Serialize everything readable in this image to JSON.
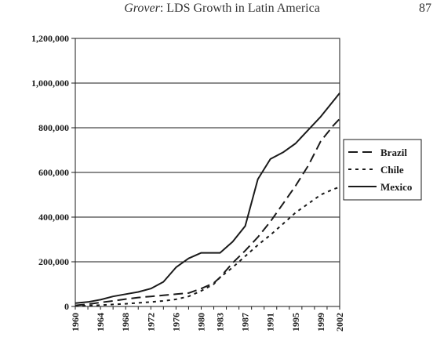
{
  "header": {
    "author": "Grover",
    "title_rest": ": LDS Growth in Latin America",
    "page_number": "87"
  },
  "chart_data": {
    "type": "line",
    "title": "",
    "xlabel": "",
    "ylabel": "",
    "ylim": [
      0,
      1200000
    ],
    "y_ticks": [
      "0",
      "200,000",
      "400,000",
      "600,000",
      "800,000",
      "1,000,000",
      "1,200,000"
    ],
    "y_tick_values": [
      0,
      200000,
      400000,
      600000,
      800000,
      1000000,
      1200000
    ],
    "x_ticks": [
      "1960",
      "1964",
      "1968",
      "1972",
      "1976",
      "1980",
      "1983",
      "1987",
      "1991",
      "1995",
      "1999",
      "2002"
    ],
    "grid": "horizontal",
    "legend_position": "right",
    "series": [
      {
        "name": "Brazil",
        "style": "dashed",
        "color": "#1a1a1a",
        "x": [
          1960,
          1962,
          1964,
          1966,
          1968,
          1970,
          1972,
          1974,
          1976,
          1978,
          1980,
          1982,
          1983,
          1985,
          1987,
          1989,
          1991,
          1993,
          1995,
          1997,
          1999,
          2001,
          2002
        ],
        "values": [
          5000,
          10000,
          18000,
          25000,
          33000,
          40000,
          45000,
          50000,
          55000,
          60000,
          80000,
          105000,
          130000,
          195000,
          250000,
          310000,
          380000,
          460000,
          540000,
          630000,
          740000,
          810000,
          840000
        ]
      },
      {
        "name": "Chile",
        "style": "dotted",
        "color": "#1a1a1a",
        "x": [
          1960,
          1962,
          1964,
          1966,
          1968,
          1970,
          1972,
          1974,
          1976,
          1978,
          1980,
          1982,
          1983,
          1985,
          1987,
          1989,
          1991,
          1993,
          1995,
          1997,
          1999,
          2001,
          2002
        ],
        "values": [
          2000,
          4000,
          6000,
          9000,
          12000,
          16000,
          20000,
          25000,
          32000,
          45000,
          70000,
          100000,
          130000,
          175000,
          225000,
          275000,
          320000,
          370000,
          420000,
          460000,
          500000,
          525000,
          535000
        ]
      },
      {
        "name": "Mexico",
        "style": "solid",
        "color": "#1a1a1a",
        "x": [
          1960,
          1962,
          1964,
          1966,
          1968,
          1970,
          1972,
          1974,
          1976,
          1978,
          1980,
          1982,
          1983,
          1985,
          1987,
          1989,
          1991,
          1993,
          1995,
          1997,
          1999,
          2001,
          2002
        ],
        "values": [
          15000,
          20000,
          30000,
          45000,
          55000,
          65000,
          80000,
          110000,
          175000,
          215000,
          240000,
          240000,
          240000,
          290000,
          360000,
          570000,
          660000,
          690000,
          730000,
          790000,
          850000,
          920000,
          955000
        ]
      }
    ]
  }
}
